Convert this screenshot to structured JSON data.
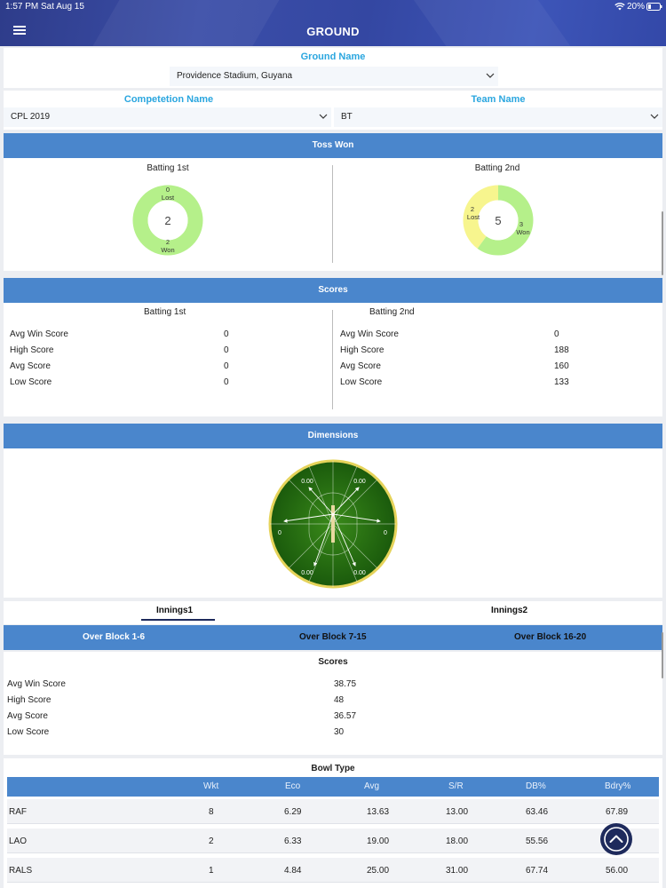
{
  "status_bar": {
    "time": "1:57 PM",
    "date": "Sat Aug 15",
    "battery": "20%"
  },
  "header": {
    "title": "GROUND"
  },
  "ground": {
    "label": "Ground Name",
    "value": "Providence Stadium, Guyana"
  },
  "competition": {
    "label": "Competetion Name",
    "value": "CPL 2019"
  },
  "team": {
    "label": "Team Name",
    "value": "BT"
  },
  "toss": {
    "title": "Toss Won",
    "batting1": {
      "label": "Batting 1st",
      "total": "2",
      "lost_count": "0",
      "lost_label": "Lost",
      "won_count": "2",
      "won_label": "Won",
      "won": 2,
      "lost": 0
    },
    "batting2": {
      "label": "Batting 2nd",
      "total": "5",
      "lost_count": "2",
      "lost_label": "Lost",
      "won_count": "3",
      "won_label": "Won",
      "won": 3,
      "lost": 2
    }
  },
  "scores": {
    "title": "Scores",
    "batting1": {
      "label": "Batting 1st",
      "rows": [
        {
          "label": "Avg Win Score",
          "value": "0"
        },
        {
          "label": "High Score",
          "value": "0"
        },
        {
          "label": "Avg Score",
          "value": "0"
        },
        {
          "label": "Low Score",
          "value": "0"
        }
      ]
    },
    "batting2": {
      "label": "Batting 2nd",
      "rows": [
        {
          "label": "Avg Win Score",
          "value": "0"
        },
        {
          "label": "High Score",
          "value": "188"
        },
        {
          "label": "Avg Score",
          "value": "160"
        },
        {
          "label": "Low Score",
          "value": "133"
        }
      ]
    }
  },
  "dimensions": {
    "title": "Dimensions",
    "values": {
      "top_left": "0.00",
      "top_right": "0.00",
      "left": "0",
      "right": "0",
      "bottom_left": "0.00",
      "bottom_right": "0.00"
    }
  },
  "innings_tabs": [
    {
      "label": "Innings1",
      "active": true
    },
    {
      "label": "Innings2",
      "active": false
    }
  ],
  "over_blocks": [
    "Over Block 1-6",
    "Over Block 7-15",
    "Over Block 16-20"
  ],
  "block_scores": {
    "title": "Scores",
    "rows": [
      {
        "label": "Avg Win Score",
        "value": "38.75"
      },
      {
        "label": "High Score",
        "value": "48"
      },
      {
        "label": "Avg Score",
        "value": "36.57"
      },
      {
        "label": "Low Score",
        "value": "30"
      }
    ]
  },
  "bowl_type": {
    "title": "Bowl Type",
    "columns": [
      "Wkt",
      "Eco",
      "Avg",
      "S/R",
      "DB%",
      "Bdry%"
    ],
    "rows": [
      {
        "type": "RAF",
        "wkt": "8",
        "eco": "6.29",
        "avg": "13.63",
        "sr": "13.00",
        "db": "63.46",
        "bdry": "67.89"
      },
      {
        "type": "LAO",
        "wkt": "2",
        "eco": "6.33",
        "avg": "19.00",
        "sr": "18.00",
        "db": "55.56",
        "bdry": ""
      },
      {
        "type": "RALS",
        "wkt": "1",
        "eco": "4.84",
        "avg": "25.00",
        "sr": "31.00",
        "db": "67.74",
        "bdry": "56.00"
      }
    ]
  },
  "colors": {
    "header": "#3447a2",
    "band": "#4a86cc",
    "accent_label": "#2aa6df",
    "donut_won": "#b5f08a",
    "donut_lost": "#f7f58e",
    "field": "#1f6b10",
    "field_rim": "#e5d35a",
    "fab": "#1e2a5c"
  },
  "icons": {
    "menu": "hamburger-icon",
    "dropdown": "chevron-down-icon",
    "wifi": "wifi-icon",
    "battery": "battery-icon",
    "scroll_top": "chevron-up-circle-icon"
  }
}
